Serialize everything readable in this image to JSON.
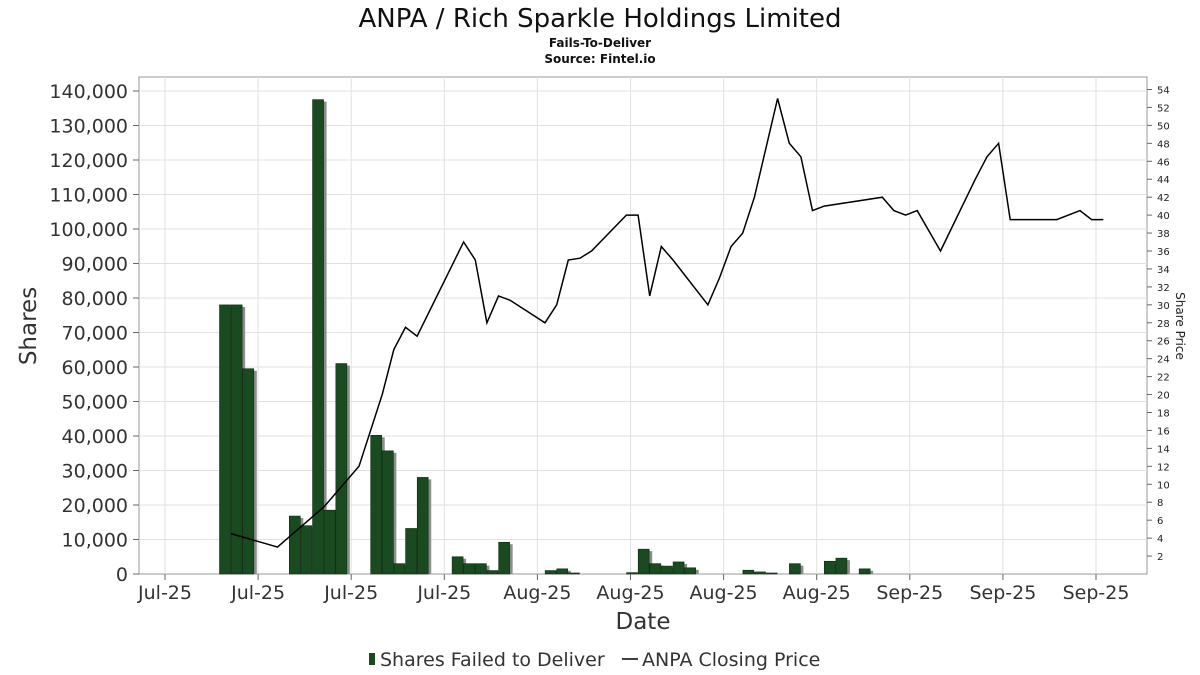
{
  "chart_data": {
    "type": "bar",
    "title": "ANPA / Rich Sparkle Holdings Limited",
    "subtitle": "Fails-To-Deliver",
    "source": "Source: Fintel.io",
    "xlabel": "Date",
    "ylabel": "Shares",
    "ylabel_right": "Share Price",
    "ylim": [
      0,
      140000
    ],
    "ylim_right": [
      0,
      54
    ],
    "y_ticks": [
      "0",
      "10,000",
      "20,000",
      "30,000",
      "40,000",
      "50,000",
      "60,000",
      "70,000",
      "80,000",
      "90,000",
      "100,000",
      "110,000",
      "120,000",
      "130,000",
      "140,000"
    ],
    "y_ticks_right": [
      "2",
      "4",
      "6",
      "8",
      "10",
      "12",
      "14",
      "16",
      "18",
      "20",
      "22",
      "24",
      "26",
      "28",
      "30",
      "32",
      "34",
      "36",
      "38",
      "40",
      "42",
      "44",
      "46",
      "48",
      "50",
      "52",
      "54"
    ],
    "x_ticks": [
      "Jul-25",
      "Jul-25",
      "Jul-25",
      "Jul-25",
      "Aug-25",
      "Aug-25",
      "Aug-25",
      "Aug-25",
      "Sep-25",
      "Sep-25",
      "Sep-25"
    ],
    "x_range": [
      0,
      90
    ],
    "grid": true,
    "legend_position": "bottom",
    "colors": {
      "bar": "#1a4a1f",
      "bar_shadow": "#8c8c8c",
      "line": "#000000",
      "grid": "#e0e0e0",
      "frame": "#999999"
    },
    "series": [
      {
        "name": "Shares Failed to Deliver",
        "kind": "bar",
        "x": [
          4,
          5,
          6,
          10,
          11,
          12,
          13,
          14,
          17,
          18,
          19,
          20,
          21,
          24,
          25,
          26,
          27,
          28,
          32,
          33,
          34,
          39,
          40,
          41,
          42,
          43,
          44,
          49,
          50,
          51,
          53,
          56,
          57,
          59
        ],
        "values": [
          78000,
          78000,
          59500,
          16800,
          14000,
          137500,
          18500,
          61000,
          40200,
          35700,
          3000,
          13200,
          28000,
          5000,
          3000,
          3000,
          1000,
          9200,
          1000,
          1500,
          300,
          400,
          7200,
          3000,
          2300,
          3500,
          1800,
          1100,
          600,
          300,
          3000,
          3700,
          4600,
          1500
        ]
      },
      {
        "name": "ANPA Closing Price",
        "kind": "line",
        "x": [
          4,
          8,
          12,
          15,
          17,
          18,
          19,
          20,
          24,
          25,
          26,
          27,
          28,
          31,
          32,
          33,
          34,
          35,
          38,
          39,
          40,
          41,
          42,
          45,
          46,
          47,
          48,
          49,
          51,
          52,
          53,
          54,
          55,
          60,
          61,
          62,
          63,
          65,
          68,
          69,
          70,
          71,
          74,
          75,
          76,
          77,
          78,
          79
        ],
        "values": [
          4.5,
          3.0,
          7.5,
          12.0,
          20.0,
          25.0,
          27.5,
          26.5,
          37.0,
          35.0,
          28.0,
          31.0,
          30.5,
          28.0,
          30.0,
          35.0,
          35.2,
          36.0,
          40.0,
          40.0,
          31.0,
          36.5,
          35.0,
          30.0,
          33.0,
          36.5,
          38.0,
          42.0,
          53.0,
          48.0,
          46.5,
          40.5,
          41.0,
          42.0,
          40.5,
          40.0,
          40.5,
          36.0,
          44.0,
          46.5,
          48.0,
          39.5,
          39.5,
          39.5,
          40.0,
          40.5,
          39.5,
          39.5
        ]
      }
    ]
  }
}
